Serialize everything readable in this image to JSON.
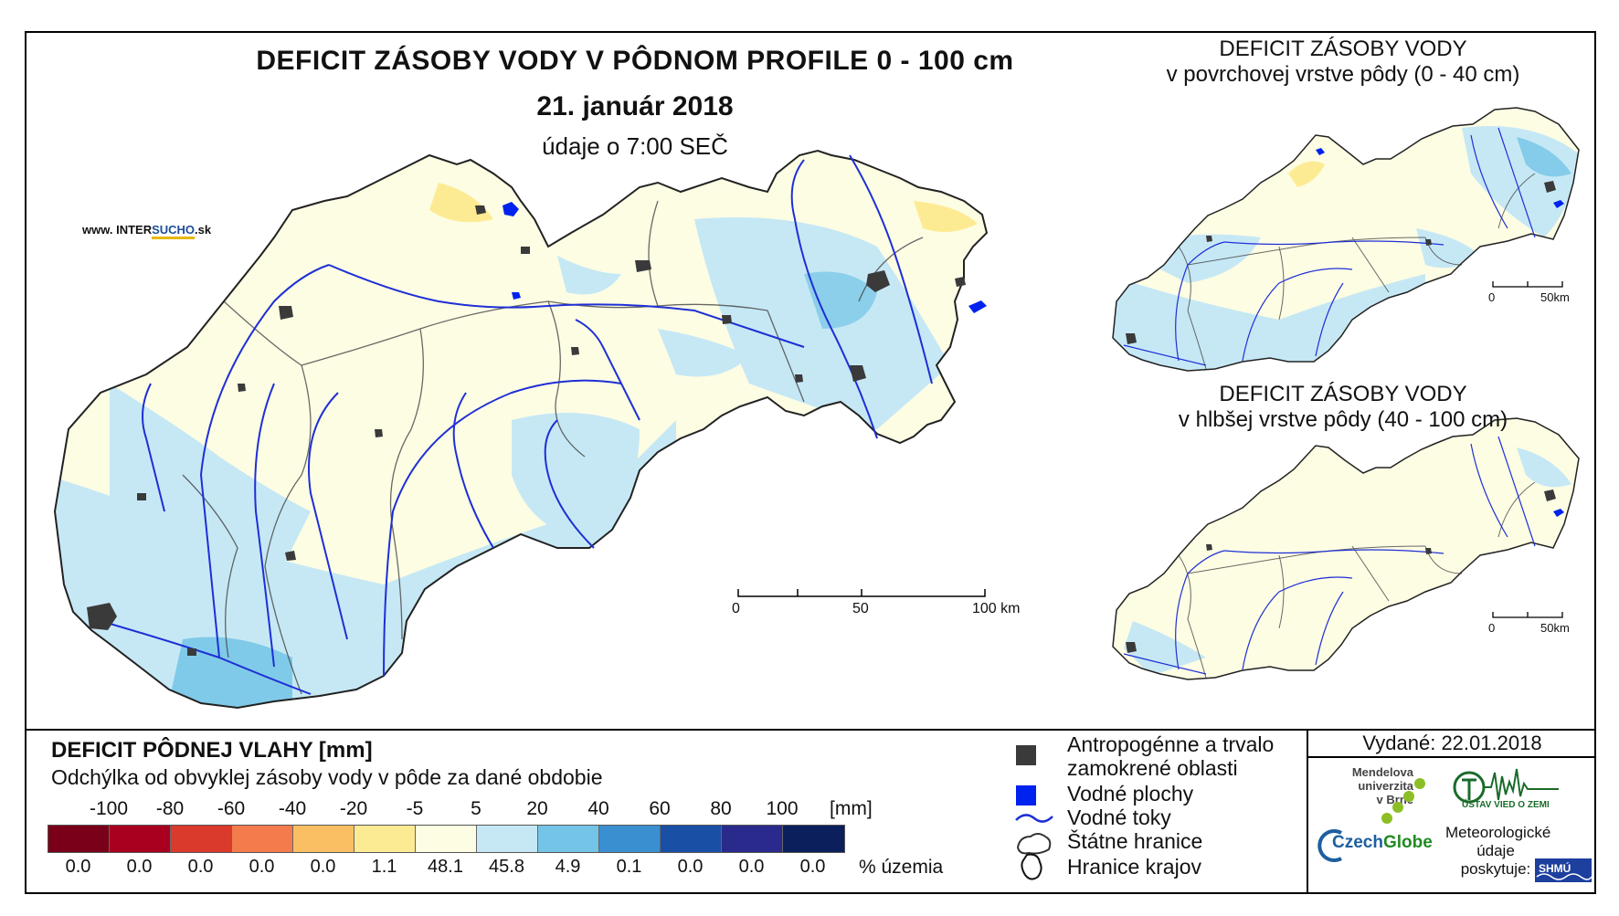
{
  "header": {
    "title": "DEFICIT ZÁSOBY VODY V PÔDNOM PROFILE 0 - 100 cm",
    "date": "21. január 2018",
    "time_note": "údaje o 7:00 SEČ",
    "website_prefix": "www. INTER",
    "website_brand": "SUCHO",
    "website_suffix": ".sk"
  },
  "inset_top": {
    "title_line1": "DEFICIT ZÁSOBY VODY",
    "title_line2": "v povrchovej vrstve pôdy (0 - 40 cm)",
    "scale_start": "0",
    "scale_end": "50km"
  },
  "inset_bottom": {
    "title_line1": "DEFICIT ZÁSOBY VODY",
    "title_line2": "v hlbšej vrstve pôdy (40 - 100 cm)",
    "scale_start": "0",
    "scale_end": "50km"
  },
  "main_scale": {
    "label_0": "0",
    "label_50": "50",
    "label_100": "100 km"
  },
  "legend": {
    "title": "DEFICIT PÔDNEJ VLAHY [mm]",
    "subtitle": "Odchýlka od obvyklej zásoby vody v pôde za dané obdobie",
    "unit": "[mm]",
    "pct_unit": "% územia",
    "ticks": [
      "-100",
      "-80",
      "-60",
      "-40",
      "-20",
      "-5",
      "5",
      "20",
      "40",
      "60",
      "80",
      "100"
    ],
    "classes": [
      {
        "color": "#7a0019",
        "pct": "0.0"
      },
      {
        "color": "#a8001e",
        "pct": "0.0"
      },
      {
        "color": "#d93a2b",
        "pct": "0.0"
      },
      {
        "color": "#f47b4c",
        "pct": "0.0"
      },
      {
        "color": "#fbbf63",
        "pct": "0.0"
      },
      {
        "color": "#fdeb94",
        "pct": "1.1"
      },
      {
        "color": "#fdfde4",
        "pct": "48.1"
      },
      {
        "color": "#c6e8f5",
        "pct": "45.8"
      },
      {
        "color": "#73c4e6",
        "pct": "4.9"
      },
      {
        "color": "#3a8fd1",
        "pct": "0.1"
      },
      {
        "color": "#1a4fa6",
        "pct": "0.0"
      },
      {
        "color": "#2a2a8c",
        "pct": "0.0"
      },
      {
        "color": "#0b1f5c",
        "pct": "0.0"
      }
    ]
  },
  "symbols": {
    "anthropogenic_line1": "Antropogénne a trvalo",
    "anthropogenic_line2": "zamokrené oblasti",
    "water_surfaces": "Vodné plochy",
    "water_streams": "Vodné toky",
    "state_border": "Štátne hranice",
    "region_border": "Hranice krajov"
  },
  "issued": "Vydané: 22.01.2018",
  "logos": {
    "mendel_line1": "Mendelova",
    "mendel_line2": "univerzita",
    "mendel_line3": "v Brně",
    "czechglobe_a": "Czech",
    "czechglobe_b": "Globe",
    "uvgz": "ÚSTAV VIED O ZEMI",
    "meteo_line1": "Meteorologické",
    "meteo_line2": "údaje",
    "meteo_line3": "poskytuje:",
    "shmu": "SHMÚ"
  }
}
